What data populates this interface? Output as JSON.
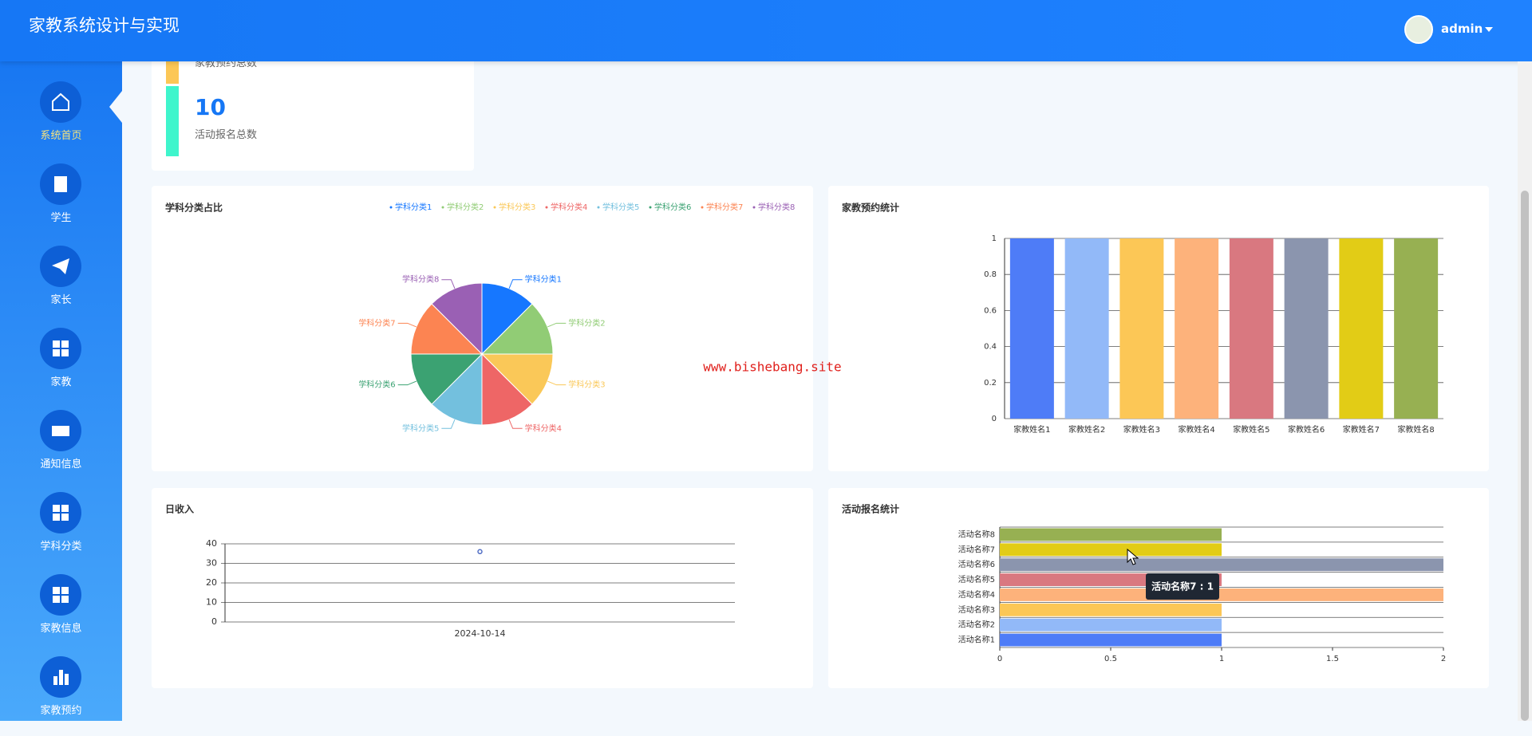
{
  "header": {
    "title": "家教系统设计与实现",
    "user": "admin"
  },
  "sidebar": {
    "menu": [
      "系统首页",
      "学生",
      "家长",
      "家教",
      "通知信息",
      "学科分类",
      "家教信息",
      "家教预约"
    ]
  },
  "stats": [
    {
      "label": "家教预约总数"
    },
    {
      "value": 10,
      "label": "活动报名总数"
    }
  ],
  "watermark": "www.bishebang.site",
  "chart_data": [
    {
      "type": "pie",
      "title": "学科分类占比",
      "categories": [
        "学科分类1",
        "学科分类2",
        "学科分类3",
        "学科分类4",
        "学科分类5",
        "学科分类6",
        "学科分类7",
        "学科分类8"
      ],
      "values": [
        1,
        1,
        1,
        1,
        1,
        1,
        1,
        1
      ],
      "colors": [
        "#1677ff",
        "#91cc75",
        "#fac858",
        "#ee6666",
        "#73c0de",
        "#3ba272",
        "#fc8452",
        "#9a60b4"
      ],
      "legend": "top-right"
    },
    {
      "type": "bar",
      "title": "家教预约统计",
      "categories": [
        "家教姓名1",
        "家教姓名2",
        "家教姓名3",
        "家教姓名4",
        "家教姓名5",
        "家教姓名6",
        "家教姓名7",
        "家教姓名8"
      ],
      "values": [
        1,
        1,
        1,
        1,
        1,
        1,
        1,
        1
      ],
      "colors": [
        "#4e7cf7",
        "#92b9f8",
        "#fcc756",
        "#fdb27b",
        "#d97880",
        "#8b95ae",
        "#e2cc16",
        "#97b052"
      ],
      "ylim": [
        0,
        1
      ],
      "yticks": [
        0,
        0.2,
        0.4,
        0.6,
        0.8,
        1
      ],
      "grid": true
    },
    {
      "type": "line",
      "title": "日收入",
      "categories": [
        "2024-10-14"
      ],
      "values": [
        36
      ],
      "color": "#5470c6",
      "ylim": [
        0,
        40
      ],
      "yticks": [
        0,
        10,
        20,
        30,
        40
      ],
      "grid": true
    },
    {
      "type": "bar",
      "horizontal": true,
      "title": "活动报名统计",
      "categories": [
        "活动名称1",
        "活动名称2",
        "活动名称3",
        "活动名称4",
        "活动名称5",
        "活动名称6",
        "活动名称7",
        "活动名称8"
      ],
      "values": [
        1,
        1,
        1,
        2,
        1,
        2,
        1,
        1
      ],
      "colors": [
        "#4e7cf7",
        "#92b9f8",
        "#fcc756",
        "#fdb27b",
        "#d97880",
        "#8b95ae",
        "#e2cc16",
        "#97b052"
      ],
      "xlim": [
        0,
        2
      ],
      "xticks": [
        0,
        0.5,
        1,
        1.5,
        2
      ],
      "tooltip": "活动名称7 : 1"
    }
  ]
}
